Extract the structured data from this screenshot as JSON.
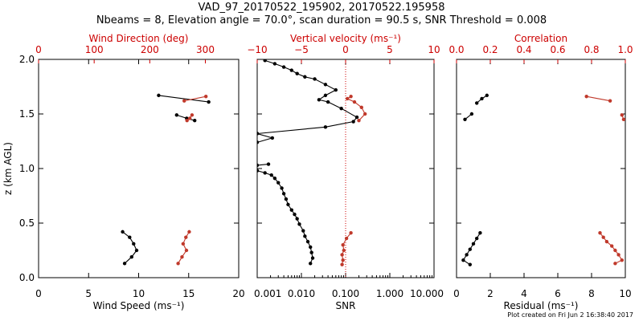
{
  "header": {
    "title": "VAD_97_20170522_195902, 20170522.195958",
    "subtitle": "Nbeams = 8, Elevation angle = 70.0°, scan duration = 90.5 s, SNR Threshold = 0.008"
  },
  "footer": {
    "text": "Plot created on Fri Jun  2 16:38:40 2017"
  },
  "colors": {
    "primary_series": "#000000",
    "secondary_series": "#c0392b",
    "secondary_axis": "#cc0000"
  },
  "chart_data": [
    {
      "type": "line",
      "ylabel": "z (km AGL)",
      "ylim": [
        0,
        2
      ],
      "yticks": [
        "0.0",
        "0.5",
        "1.0",
        "1.5",
        "2.0"
      ],
      "bottom_axis": {
        "label": "Wind Speed (ms⁻¹)",
        "range": [
          0,
          20
        ],
        "tick_labels": [
          "0",
          "5",
          "10",
          "15",
          "20"
        ]
      },
      "top_axis": {
        "label": "Wind Direction (deg)",
        "range": [
          0,
          360
        ],
        "tick_labels": [
          "0",
          "100",
          "200",
          "300"
        ],
        "color": "#cc0000"
      },
      "series": [
        {
          "axis": "bottom",
          "color": "#000000",
          "segments": [
            {
              "x": [
                8.6,
                9.3,
                9.8,
                9.5,
                9.1,
                8.4
              ],
              "y": [
                0.13,
                0.19,
                0.25,
                0.31,
                0.37,
                0.42
              ]
            },
            {
              "x": [
                13.8,
                14.8,
                15.6
              ],
              "y": [
                1.49,
                1.46,
                1.44
              ]
            },
            {
              "x": [
                12.0,
                17.0
              ],
              "y": [
                1.67,
                1.61
              ]
            }
          ]
        },
        {
          "axis": "top",
          "color": "#c0392b",
          "segments": [
            {
              "x": [
                251,
                258,
                266,
                260,
                265,
                271
              ],
              "y": [
                0.13,
                0.19,
                0.25,
                0.31,
                0.37,
                0.42
              ]
            },
            {
              "x": [
                267,
                272,
                276
              ],
              "y": [
                1.44,
                1.46,
                1.49
              ]
            },
            {
              "x": [
                262,
                301
              ],
              "y": [
                1.62,
                1.66
              ]
            }
          ]
        }
      ]
    },
    {
      "type": "line",
      "ylim": [
        0,
        2
      ],
      "bottom_axis": {
        "label": "SNR",
        "scale": "log",
        "range": [
          0.001,
          10
        ],
        "tick_labels": [
          "0.001",
          "0.010",
          "0.100",
          "1.000",
          "10.000"
        ]
      },
      "top_axis": {
        "label": "Vertical velocity (ms⁻¹)",
        "range": [
          -10,
          10
        ],
        "tick_labels": [
          "−10",
          "−5",
          "0",
          "5",
          "10"
        ],
        "color": "#cc0000"
      },
      "reference_line": {
        "axis": "top",
        "x": 0,
        "style": "dotted",
        "color": "#cc0000"
      },
      "series": [
        {
          "axis": "bottom",
          "color": "#000000",
          "segments": [
            {
              "x": [
                0.016,
                0.018,
                0.017,
                0.016,
                0.014,
                0.012,
                0.011,
                0.009,
                0.008,
                0.007,
                0.006,
                0.005,
                0.0045,
                0.004,
                0.0036,
                0.003,
                0.0025,
                0.0021,
                0.0015,
                0.001
              ],
              "y": [
                0.13,
                0.18,
                0.23,
                0.28,
                0.33,
                0.38,
                0.43,
                0.49,
                0.54,
                0.58,
                0.62,
                0.67,
                0.72,
                0.77,
                0.82,
                0.87,
                0.91,
                0.94,
                0.96,
                0.98
              ]
            },
            {
              "x": [
                0.001,
                0.0018
              ],
              "y": [
                1.03,
                1.04
              ]
            },
            {
              "x": [
                0.001,
                0.0022,
                0.001
              ],
              "y": [
                1.24,
                1.28,
                1.32
              ]
            },
            {
              "x": [
                0.001,
                0.035,
                0.15,
                0.18,
                0.08,
                0.04,
                0.025,
                0.035,
                0.06,
                0.035,
                0.02,
                0.012,
                0.008,
                0.006,
                0.004,
                0.0025,
                0.0015
              ],
              "y": [
                1.32,
                1.38,
                1.43,
                1.47,
                1.55,
                1.61,
                1.63,
                1.67,
                1.72,
                1.77,
                1.82,
                1.84,
                1.87,
                1.9,
                1.93,
                1.96,
                1.99
              ]
            }
          ]
        },
        {
          "axis": "top",
          "color": "#c0392b",
          "segments": [
            {
              "x": [
                -0.4,
                -0.3,
                -0.4,
                -0.2,
                -0.3,
                0.1,
                0.6
              ],
              "y": [
                0.12,
                0.16,
                0.21,
                0.25,
                0.3,
                0.36,
                0.41
              ]
            },
            {
              "x": [
                1.5,
                2.2,
                1.8,
                1.0,
                0.2,
                0.6
              ],
              "y": [
                1.44,
                1.5,
                1.56,
                1.61,
                1.64,
                1.66
              ]
            }
          ]
        }
      ]
    },
    {
      "type": "line",
      "ylim": [
        0,
        2
      ],
      "bottom_axis": {
        "label": "Residual (ms⁻¹)",
        "range": [
          0,
          10
        ],
        "tick_labels": [
          "0",
          "2",
          "4",
          "6",
          "8",
          "10"
        ]
      },
      "top_axis": {
        "label": "Correlation",
        "range": [
          0,
          1
        ],
        "tick_labels": [
          "0.0",
          "0.2",
          "0.4",
          "0.6",
          "0.8",
          "1.0"
        ],
        "color": "#cc0000"
      },
      "series": [
        {
          "axis": "bottom",
          "color": "#000000",
          "segments": [
            {
              "x": [
                0.8,
                0.4,
                0.6,
                0.8,
                1.0,
                1.2,
                1.4
              ],
              "y": [
                0.12,
                0.16,
                0.21,
                0.26,
                0.31,
                0.36,
                0.41
              ]
            },
            {
              "x": [
                0.5,
                0.9
              ],
              "y": [
                1.45,
                1.5
              ]
            },
            {
              "x": [
                1.2,
                1.5,
                1.8
              ],
              "y": [
                1.6,
                1.64,
                1.67
              ]
            }
          ]
        },
        {
          "axis": "top",
          "color": "#c0392b",
          "segments": [
            {
              "x": [
                0.94,
                0.98,
                0.96,
                0.94,
                0.92,
                0.89,
                0.87,
                0.85
              ],
              "y": [
                0.13,
                0.16,
                0.21,
                0.25,
                0.29,
                0.33,
                0.37,
                0.41
              ]
            },
            {
              "x": [
                0.99,
                0.98
              ],
              "y": [
                1.45,
                1.49
              ]
            },
            {
              "x": [
                0.77,
                0.91
              ],
              "y": [
                1.66,
                1.62
              ]
            }
          ]
        }
      ]
    }
  ]
}
